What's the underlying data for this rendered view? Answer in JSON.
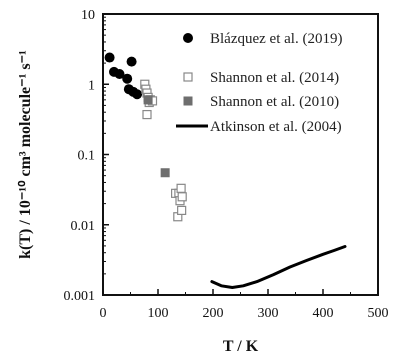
{
  "chart_data": {
    "type": "scatter",
    "title": "",
    "xlabel": "T / K",
    "ylabel": "k(T) / 10⁻¹⁰ cm³ molecule⁻¹ s⁻¹",
    "xlim": [
      0,
      500
    ],
    "ylim": [
      0.001,
      10
    ],
    "yscale": "log",
    "grid": false,
    "legend_position": "top-right",
    "x_ticks": [
      "0",
      "100",
      "200",
      "300",
      "400",
      "500"
    ],
    "y_ticks": [
      "0.001",
      "0.01",
      "0.1",
      "1",
      "10"
    ],
    "series": [
      {
        "name": "Blázquez et al. (2019)",
        "marker": "filled-circle",
        "color": "#000000",
        "points": [
          {
            "x": 12,
            "y": 2.4
          },
          {
            "x": 20,
            "y": 1.5
          },
          {
            "x": 30,
            "y": 1.4
          },
          {
            "x": 44,
            "y": 1.2
          },
          {
            "x": 47,
            "y": 0.85
          },
          {
            "x": 52,
            "y": 2.1
          },
          {
            "x": 55,
            "y": 0.78
          },
          {
            "x": 62,
            "y": 0.72
          }
        ]
      },
      {
        "name": "Shannon et al. (2014)",
        "marker": "open-square",
        "color": "#888888",
        "points": [
          {
            "x": 76,
            "y": 1.0
          },
          {
            "x": 78,
            "y": 0.85
          },
          {
            "x": 80,
            "y": 0.75
          },
          {
            "x": 82,
            "y": 0.65
          },
          {
            "x": 84,
            "y": 0.55
          },
          {
            "x": 86,
            "y": 0.6
          },
          {
            "x": 90,
            "y": 0.58
          },
          {
            "x": 80,
            "y": 0.37
          },
          {
            "x": 132,
            "y": 0.028
          },
          {
            "x": 138,
            "y": 0.028
          },
          {
            "x": 140,
            "y": 0.022
          },
          {
            "x": 142,
            "y": 0.033
          },
          {
            "x": 144,
            "y": 0.025
          },
          {
            "x": 136,
            "y": 0.013
          },
          {
            "x": 143,
            "y": 0.016
          }
        ]
      },
      {
        "name": "Shannon et al. (2010)",
        "marker": "filled-square",
        "color": "#6e6e6e",
        "points": [
          {
            "x": 82,
            "y": 0.6
          },
          {
            "x": 113,
            "y": 0.055
          }
        ]
      },
      {
        "name": "Atkinson et al. (2004)",
        "marker": "line",
        "color": "#000000",
        "points": [
          {
            "x": 198,
            "y": 0.00155
          },
          {
            "x": 215,
            "y": 0.00135
          },
          {
            "x": 235,
            "y": 0.00128
          },
          {
            "x": 255,
            "y": 0.00135
          },
          {
            "x": 280,
            "y": 0.00155
          },
          {
            "x": 310,
            "y": 0.00195
          },
          {
            "x": 340,
            "y": 0.0025
          },
          {
            "x": 370,
            "y": 0.0031
          },
          {
            "x": 400,
            "y": 0.0038
          },
          {
            "x": 420,
            "y": 0.0043
          },
          {
            "x": 440,
            "y": 0.0049
          }
        ]
      }
    ]
  }
}
